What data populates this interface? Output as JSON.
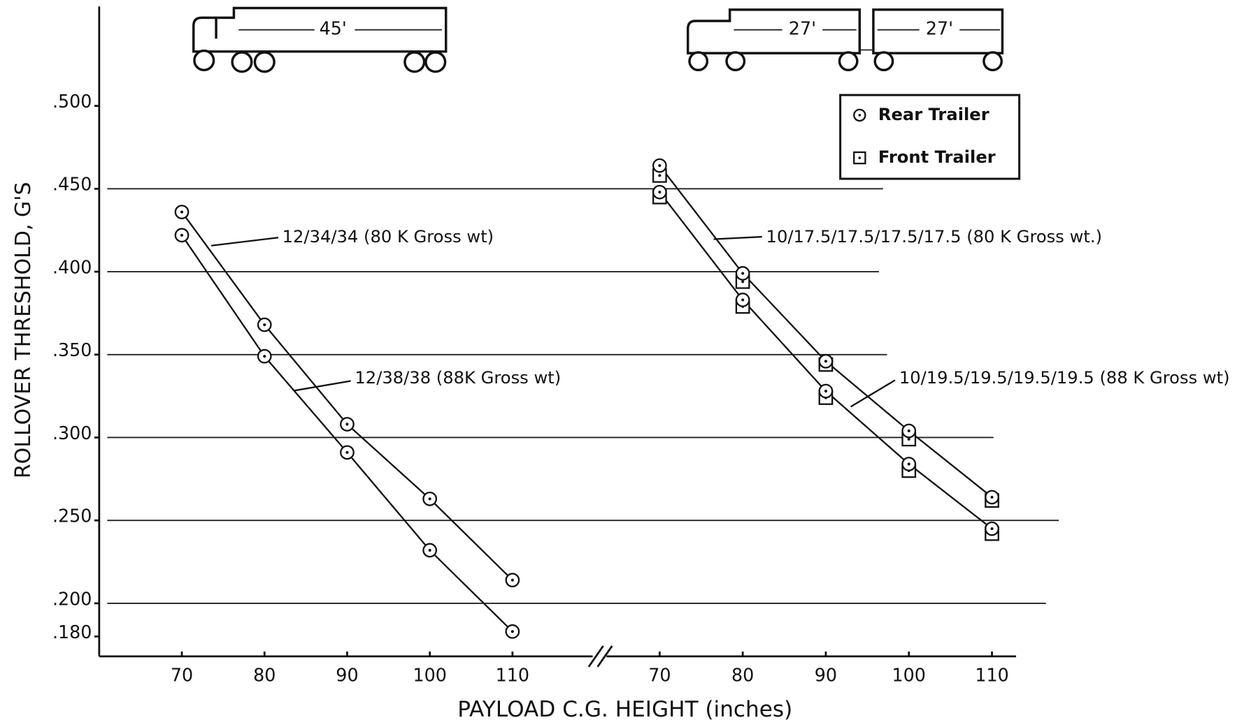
{
  "chart_data": {
    "type": "line",
    "xlabel": "PAYLOAD C.G. HEIGHT (inches)",
    "ylabel": "ROLLOVER THRESHOLD, G'S",
    "ylim": [
      0.168,
      0.559
    ],
    "yticks": [
      {
        "value": 0.5,
        "label": ".500"
      },
      {
        "value": 0.45,
        "label": ".450"
      },
      {
        "value": 0.4,
        "label": ".400"
      },
      {
        "value": 0.35,
        "label": ".350"
      },
      {
        "value": 0.3,
        "label": ".300"
      },
      {
        "value": 0.25,
        "label": ".250"
      },
      {
        "value": 0.2,
        "label": ".200"
      },
      {
        "value": 0.18,
        "label": ".180"
      }
    ],
    "grid": true,
    "legend": [
      {
        "marker": "circle",
        "label": "Rear Trailer"
      },
      {
        "marker": "square",
        "label": "Front Trailer"
      }
    ],
    "panels": [
      {
        "truck_labels": [
          "45'"
        ],
        "xlim": [
          60,
          115
        ],
        "xticks": [
          70,
          80,
          90,
          100,
          110
        ],
        "x": [
          70,
          80,
          90,
          100,
          110
        ],
        "series": [
          {
            "name": "12/34/34 (80 K Gross wt)",
            "marker": "circle",
            "values": [
              0.436,
              0.368,
              0.308,
              0.263,
              0.214
            ]
          },
          {
            "name": "12/38/38 (88K Gross wt)",
            "marker": "circle",
            "values": [
              0.422,
              0.349,
              0.291,
              0.232,
              0.183
            ]
          }
        ]
      },
      {
        "truck_labels": [
          "27'",
          "27'"
        ],
        "xlim": [
          62,
          113
        ],
        "xticks": [
          70,
          80,
          90,
          100,
          110
        ],
        "x": [
          70,
          80,
          90,
          100,
          110
        ],
        "series": [
          {
            "name": "10/17.5/17.5/17.5/17.5 (80 K Gross wt.)",
            "rear": [
              0.464,
              0.399,
              0.346,
              0.304,
              0.264
            ],
            "front": [
              0.458,
              0.394,
              0.344,
              0.299,
              0.262
            ]
          },
          {
            "name": "10/19.5/19.5/19.5/19.5 (88 K Gross wt)",
            "rear": [
              0.448,
              0.383,
              0.328,
              0.284,
              0.245
            ],
            "front": [
              0.445,
              0.379,
              0.324,
              0.28,
              0.242
            ]
          }
        ]
      }
    ]
  }
}
